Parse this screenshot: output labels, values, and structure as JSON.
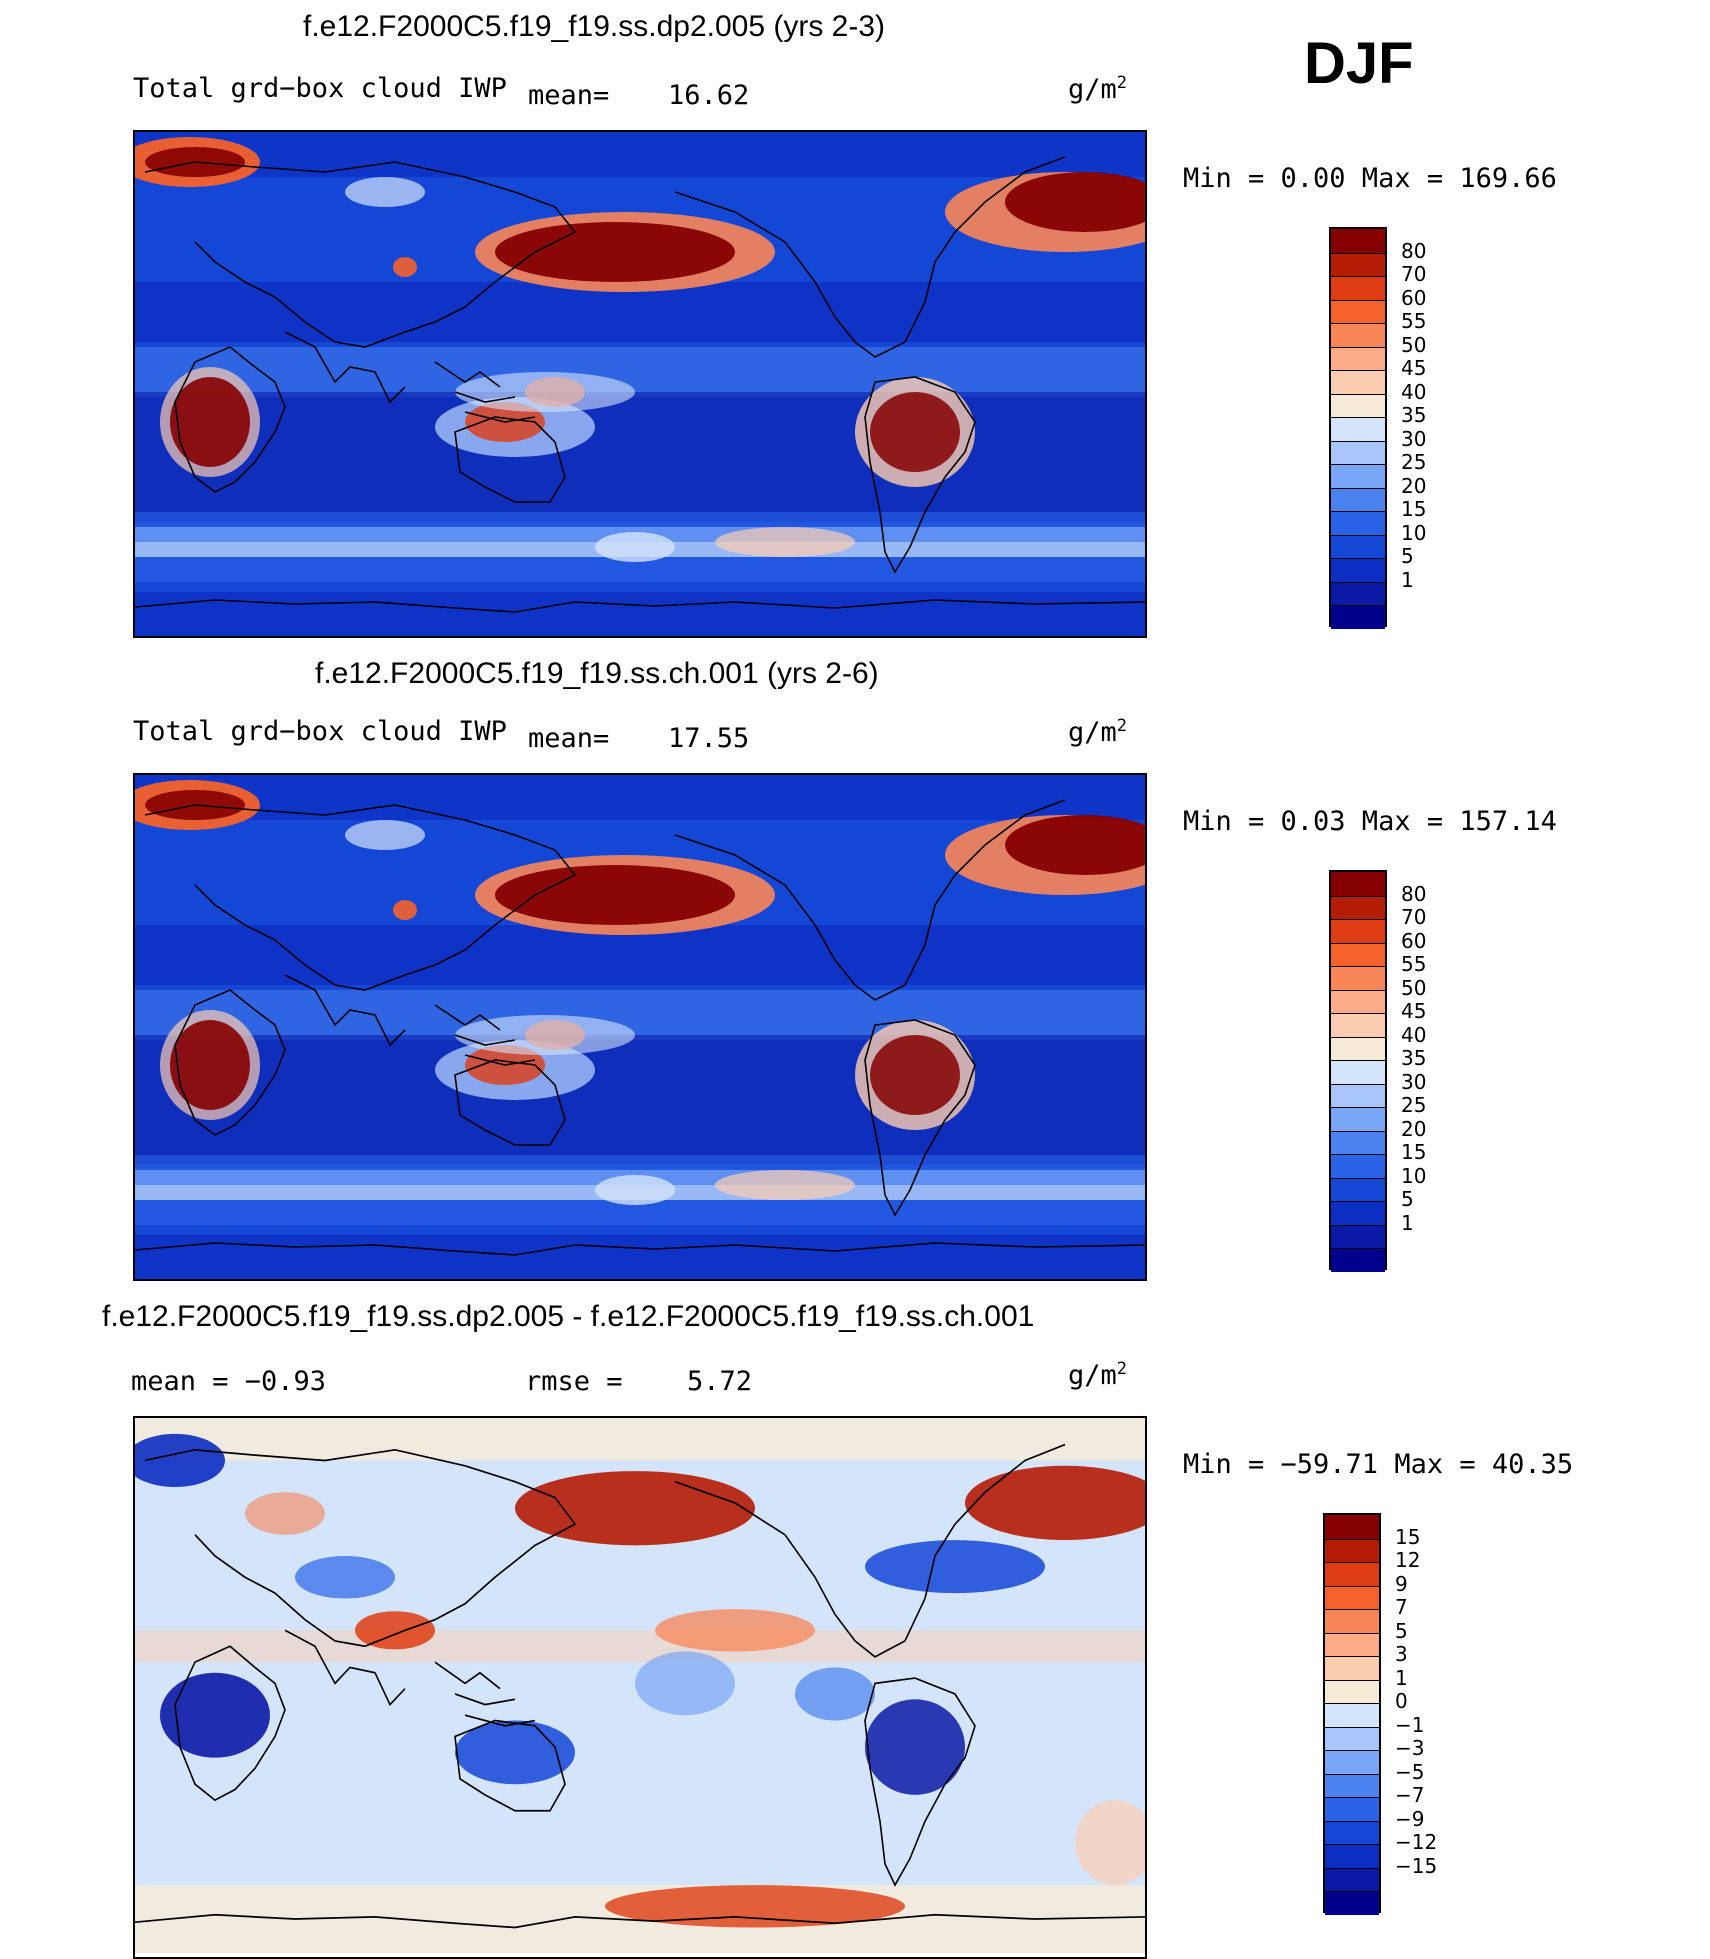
{
  "season": "DJF",
  "panels": [
    {
      "title": "f.e12.F2000C5.f19_f19.ss.dp2.005 (yrs 2-3)",
      "left_label": "Total grd−box cloud IWP",
      "mean_label": "mean=",
      "mean_value": "16.62",
      "units_base": "g/m",
      "units_exp": "2",
      "minmax": "Min =     0.00 Max =  169.66"
    },
    {
      "title": "f.e12.F2000C5.f19_f19.ss.ch.001 (yrs 2-6)",
      "left_label": "Total grd−box cloud IWP",
      "mean_label": "mean=",
      "mean_value": "17.55",
      "units_base": "g/m",
      "units_exp": "2",
      "minmax": "Min =     0.03 Max =  157.14"
    },
    {
      "title": "f.e12.F2000C5.f19_f19.ss.dp2.005 - f.e12.F2000C5.f19_f19.ss.ch.001",
      "left_label": "mean =   −0.93",
      "mean_label": "rmse =",
      "mean_value": "5.72",
      "units_base": "g/m",
      "units_exp": "2",
      "minmax": "Min = −59.71 Max =   40.35"
    }
  ],
  "chart_data": [
    {
      "type": "heatmap",
      "title": "f.e12.F2000C5.f19_f19.ss.dp2.005 (yrs 2-3)",
      "variable": "Total grd−box cloud IWP",
      "units": "g/m2",
      "mean": 16.62,
      "min": 0.0,
      "max": 169.66,
      "contour_levels": [
        "1",
        "5",
        "10",
        "15",
        "20",
        "25",
        "30",
        "35",
        "40",
        "45",
        "50",
        "55",
        "60",
        "70",
        "80"
      ],
      "colors": [
        "#00008c",
        "#0a1aa6",
        "#0c2ec2",
        "#1447d6",
        "#2a62e8",
        "#4a82f0",
        "#7aa6f7",
        "#a9c6fb",
        "#d3e4fb",
        "#f7ebd8",
        "#fbcdb0",
        "#fbab86",
        "#f98656",
        "#f4622c",
        "#de3c12",
        "#b51c04",
        "#850000"
      ]
    },
    {
      "type": "heatmap",
      "title": "f.e12.F2000C5.f19_f19.ss.ch.001 (yrs 2-6)",
      "variable": "Total grd−box cloud IWP",
      "units": "g/m2",
      "mean": 17.55,
      "min": 0.03,
      "max": 157.14,
      "contour_levels": [
        "1",
        "5",
        "10",
        "15",
        "20",
        "25",
        "30",
        "35",
        "40",
        "45",
        "50",
        "55",
        "60",
        "70",
        "80"
      ],
      "colors": [
        "#00008c",
        "#0a1aa6",
        "#0c2ec2",
        "#1447d6",
        "#2a62e8",
        "#4a82f0",
        "#7aa6f7",
        "#a9c6fb",
        "#d3e4fb",
        "#f7ebd8",
        "#fbcdb0",
        "#fbab86",
        "#f98656",
        "#f4622c",
        "#de3c12",
        "#b51c04",
        "#850000"
      ]
    },
    {
      "type": "heatmap",
      "title": "f.e12.F2000C5.f19_f19.ss.dp2.005 - f.e12.F2000C5.f19_f19.ss.ch.001",
      "units": "g/m2",
      "mean": -0.93,
      "rmse": 5.72,
      "min": -59.71,
      "max": 40.35,
      "contour_levels": [
        "−15",
        "−12",
        "−9",
        "−7",
        "−5",
        "−3",
        "−1",
        "0",
        "1",
        "3",
        "5",
        "7",
        "9",
        "12",
        "15"
      ],
      "colors": [
        "#00008c",
        "#0a1aa6",
        "#0c2ec2",
        "#1447d6",
        "#2a62e8",
        "#4a82f0",
        "#7aa6f7",
        "#a9c6fb",
        "#d3e4fb",
        "#f7ebd8",
        "#fbcdb0",
        "#fbab86",
        "#f98656",
        "#f4622c",
        "#de3c12",
        "#b51c04",
        "#850000"
      ]
    }
  ]
}
